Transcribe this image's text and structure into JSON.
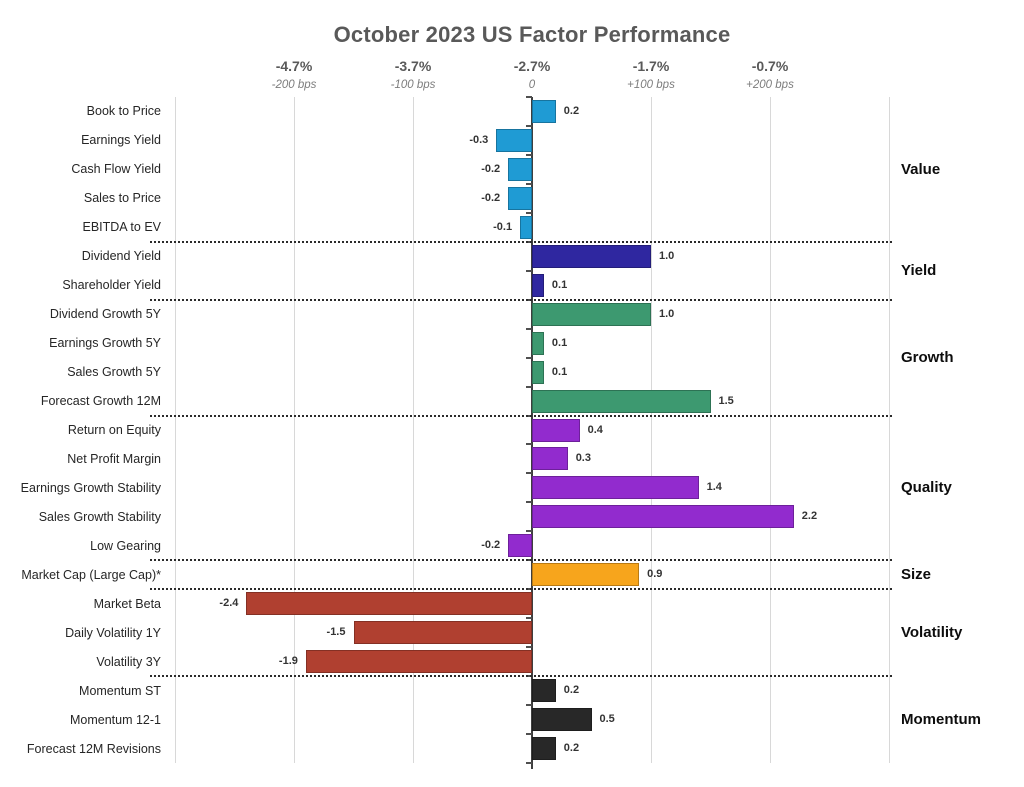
{
  "title": "October 2023 US Factor Performance",
  "chart_data": {
    "type": "bar",
    "orientation": "horizontal",
    "title": "October 2023 US Factor Performance",
    "grid": true,
    "xlim": [
      -3,
      3
    ],
    "unit_note": "1.0 bar unit = 100 bps",
    "x_axis": {
      "ticks": [
        {
          "pct": "-4.7%",
          "bps": "-200 bps",
          "value": -2
        },
        {
          "pct": "-3.7%",
          "bps": "-100 bps",
          "value": -1
        },
        {
          "pct": "-2.7%",
          "bps": "0",
          "value": 0
        },
        {
          "pct": "-1.7%",
          "bps": "+100 bps",
          "value": 1
        },
        {
          "pct": "-0.7%",
          "bps": "+200 bps",
          "value": 2
        }
      ]
    },
    "groups": [
      {
        "label": "Value",
        "color": "#1f9bd4",
        "factors": [
          {
            "label": "Book to Price",
            "value": 0.2,
            "value_label": "0.2"
          },
          {
            "label": "Earnings Yield",
            "value": -0.3,
            "value_label": "-0.3"
          },
          {
            "label": "Cash Flow Yield",
            "value": -0.2,
            "value_label": "-0.2"
          },
          {
            "label": "Sales to Price",
            "value": -0.2,
            "value_label": "-0.2"
          },
          {
            "label": "EBITDA to EV",
            "value": -0.1,
            "value_label": "-0.1"
          }
        ]
      },
      {
        "label": "Yield",
        "color": "#2f27a0",
        "factors": [
          {
            "label": "Dividend Yield",
            "value": 1.0,
            "value_label": "1.0"
          },
          {
            "label": "Shareholder Yield",
            "value": 0.1,
            "value_label": "0.1"
          }
        ]
      },
      {
        "label": "Growth",
        "color": "#3d9970",
        "factors": [
          {
            "label": "Dividend Growth 5Y",
            "value": 1.0,
            "value_label": "1.0"
          },
          {
            "label": "Earnings Growth 5Y",
            "value": 0.1,
            "value_label": "0.1"
          },
          {
            "label": "Sales Growth 5Y",
            "value": 0.1,
            "value_label": "0.1"
          },
          {
            "label": "Forecast Growth 12M",
            "value": 1.5,
            "value_label": "1.5"
          }
        ]
      },
      {
        "label": "Quality",
        "color": "#922bce",
        "factors": [
          {
            "label": "Return on Equity",
            "value": 0.4,
            "value_label": "0.4"
          },
          {
            "label": "Net Profit Margin",
            "value": 0.3,
            "value_label": "0.3"
          },
          {
            "label": "Earnings Growth Stability",
            "value": 1.4,
            "value_label": "1.4"
          },
          {
            "label": "Sales Growth Stability",
            "value": 2.2,
            "value_label": "2.2"
          },
          {
            "label": "Low Gearing",
            "value": -0.2,
            "value_label": "-0.2"
          }
        ]
      },
      {
        "label": "Size",
        "color": "#f7a51c",
        "factors": [
          {
            "label": "Market Cap (Large Cap)*",
            "value": 0.9,
            "value_label": "0.9"
          }
        ]
      },
      {
        "label": "Volatility",
        "color": "#b04030",
        "factors": [
          {
            "label": "Market Beta",
            "value": -2.4,
            "value_label": "-2.4"
          },
          {
            "label": "Daily Volatility 1Y",
            "value": -1.5,
            "value_label": "-1.5"
          },
          {
            "label": "Volatility 3Y",
            "value": -1.9,
            "value_label": "-1.9"
          }
        ]
      },
      {
        "label": "Momentum",
        "color": "#282828",
        "factors": [
          {
            "label": "Momentum ST",
            "value": 0.2,
            "value_label": "0.2"
          },
          {
            "label": "Momentum 12-1",
            "value": 0.5,
            "value_label": "0.5"
          },
          {
            "label": "Forecast 12M Revisions",
            "value": 0.2,
            "value_label": "0.2"
          }
        ]
      }
    ]
  }
}
